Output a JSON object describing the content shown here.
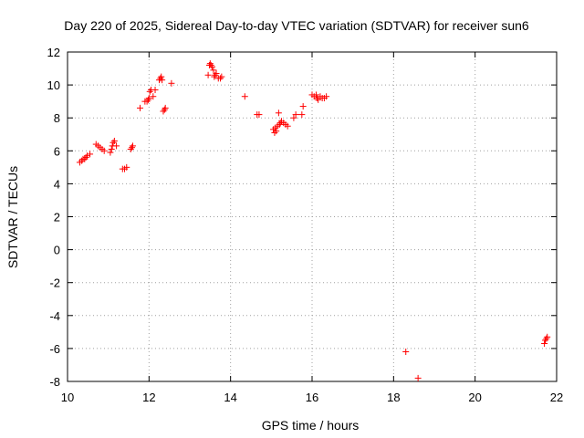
{
  "chart_data": {
    "type": "scatter",
    "title": "Day 220 of 2025, Sidereal Day-to-day VTEC variation (SDTVAR) for receiver sun6",
    "xlabel": "GPS time / hours",
    "ylabel": "SDTVAR / TECUs",
    "xlim": [
      10,
      22
    ],
    "ylim": [
      -8,
      12
    ],
    "xticks": [
      "10",
      "12",
      "14",
      "16",
      "18",
      "20",
      "22"
    ],
    "yticks": [
      "12",
      "10",
      "8",
      "6",
      "4",
      "2",
      "0",
      "-2",
      "-4",
      "-6",
      "-8"
    ],
    "grid": true,
    "marker": "plus",
    "color": "#ff0000",
    "series": [
      {
        "name": "SDTVAR",
        "points": [
          [
            10.3,
            5.3
          ],
          [
            10.35,
            5.4
          ],
          [
            10.38,
            5.5
          ],
          [
            10.42,
            5.5
          ],
          [
            10.45,
            5.6
          ],
          [
            10.48,
            5.7
          ],
          [
            10.55,
            5.8
          ],
          [
            10.7,
            6.4
          ],
          [
            10.75,
            6.3
          ],
          [
            10.8,
            6.2
          ],
          [
            10.85,
            6.1
          ],
          [
            10.9,
            6.0
          ],
          [
            11.05,
            5.9
          ],
          [
            11.08,
            6.1
          ],
          [
            11.1,
            6.3
          ],
          [
            11.12,
            6.5
          ],
          [
            11.15,
            6.6
          ],
          [
            11.2,
            6.3
          ],
          [
            11.35,
            4.9
          ],
          [
            11.4,
            4.9
          ],
          [
            11.45,
            5.0
          ],
          [
            11.55,
            6.1
          ],
          [
            11.58,
            6.2
          ],
          [
            11.6,
            6.3
          ],
          [
            11.78,
            8.6
          ],
          [
            11.9,
            9.0
          ],
          [
            11.95,
            9.0
          ],
          [
            11.98,
            9.1
          ],
          [
            12.0,
            9.2
          ],
          [
            12.02,
            9.6
          ],
          [
            12.05,
            9.7
          ],
          [
            12.1,
            9.3
          ],
          [
            12.15,
            9.7
          ],
          [
            12.25,
            10.3
          ],
          [
            12.28,
            10.4
          ],
          [
            12.3,
            10.5
          ],
          [
            12.32,
            10.3
          ],
          [
            12.35,
            8.4
          ],
          [
            12.38,
            8.5
          ],
          [
            12.4,
            8.6
          ],
          [
            12.55,
            10.1
          ],
          [
            13.45,
            10.6
          ],
          [
            13.48,
            11.2
          ],
          [
            13.5,
            11.3
          ],
          [
            13.52,
            11.2
          ],
          [
            13.55,
            11.1
          ],
          [
            13.58,
            10.9
          ],
          [
            13.6,
            10.5
          ],
          [
            13.62,
            10.6
          ],
          [
            13.65,
            10.7
          ],
          [
            13.7,
            10.4
          ],
          [
            13.75,
            10.4
          ],
          [
            13.78,
            10.5
          ],
          [
            14.35,
            9.3
          ],
          [
            14.65,
            8.2
          ],
          [
            14.7,
            8.2
          ],
          [
            15.05,
            7.3
          ],
          [
            15.08,
            7.1
          ],
          [
            15.1,
            7.4
          ],
          [
            15.12,
            7.2
          ],
          [
            15.15,
            7.5
          ],
          [
            15.18,
            8.3
          ],
          [
            15.2,
            7.6
          ],
          [
            15.22,
            7.7
          ],
          [
            15.25,
            7.8
          ],
          [
            15.3,
            7.7
          ],
          [
            15.35,
            7.6
          ],
          [
            15.4,
            7.5
          ],
          [
            15.55,
            8.0
          ],
          [
            15.6,
            8.2
          ],
          [
            15.75,
            8.2
          ],
          [
            15.78,
            8.7
          ],
          [
            16.0,
            9.4
          ],
          [
            16.05,
            9.3
          ],
          [
            16.1,
            9.4
          ],
          [
            16.12,
            9.2
          ],
          [
            16.15,
            9.1
          ],
          [
            16.2,
            9.3
          ],
          [
            16.25,
            9.2
          ],
          [
            16.3,
            9.2
          ],
          [
            16.35,
            9.3
          ],
          [
            18.3,
            -6.2
          ],
          [
            18.6,
            -7.8
          ],
          [
            21.7,
            -5.7
          ],
          [
            21.72,
            -5.5
          ],
          [
            21.75,
            -5.4
          ],
          [
            21.77,
            -5.3
          ]
        ]
      }
    ]
  }
}
